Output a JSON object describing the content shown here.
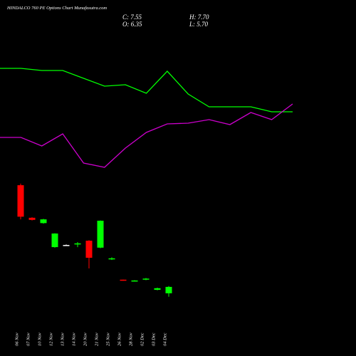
{
  "chart_data": [
    {
      "type": "candlestick",
      "title": "HINDALCO 760 PE Options Chart Munafasutra.com",
      "info": [
        "C: 7.55",
        "H: 7.70",
        "O: 6.35",
        "L: 5.70"
      ],
      "categories": [
        "06 Nov",
        "07 Nov",
        "10 Nov",
        "12 Nov",
        "13 Nov",
        "14 Nov",
        "20 Nov",
        "21 Nov",
        "25 Nov",
        "26 Nov",
        "28 Nov",
        "02 Dec",
        "03 Dec",
        "04 Dec"
      ],
      "open": [
        26.6,
        20.5,
        19.5,
        15.0,
        15.4,
        15.5,
        16.2,
        14.9,
        12.7,
        8.9,
        8.6,
        8.9,
        7.0,
        6.35
      ],
      "close": [
        20.7,
        20.1,
        20.2,
        17.55,
        15.4,
        15.7,
        13.0,
        19.95,
        12.9,
        8.7,
        8.75,
        9.1,
        7.3,
        7.55
      ],
      "high": [
        26.9,
        20.6,
        20.3,
        17.6,
        15.5,
        15.95,
        16.3,
        20.0,
        13.1,
        8.9,
        8.8,
        9.2,
        7.4,
        7.7
      ],
      "low": [
        20.2,
        20.0,
        19.4,
        14.9,
        15.3,
        15.0,
        11.0,
        14.8,
        12.6,
        8.7,
        8.55,
        8.8,
        6.9,
        5.7
      ],
      "up_color": "#00ff00",
      "down_color": "#ff0000",
      "flat_color": "#ffffff",
      "ylim": [
        -5.4,
        61.3
      ]
    },
    {
      "type": "line",
      "series": [
        {
          "color": "#00ff00",
          "values": [
            80.8,
            80.8,
            80.2,
            80.2,
            78.0,
            75.8,
            76.2,
            73.8,
            80.0,
            73.6,
            70.0,
            70.0,
            70.0,
            68.6,
            68.6
          ]
        },
        {
          "color": "#cc00cc",
          "values": [
            61.4,
            61.4,
            59.0,
            62.4,
            54.2,
            53.0,
            58.4,
            62.8,
            65.2,
            65.4,
            66.4,
            65.0,
            68.4,
            66.4,
            70.8
          ]
        }
      ],
      "ylim": [
        0,
        100
      ]
    }
  ]
}
